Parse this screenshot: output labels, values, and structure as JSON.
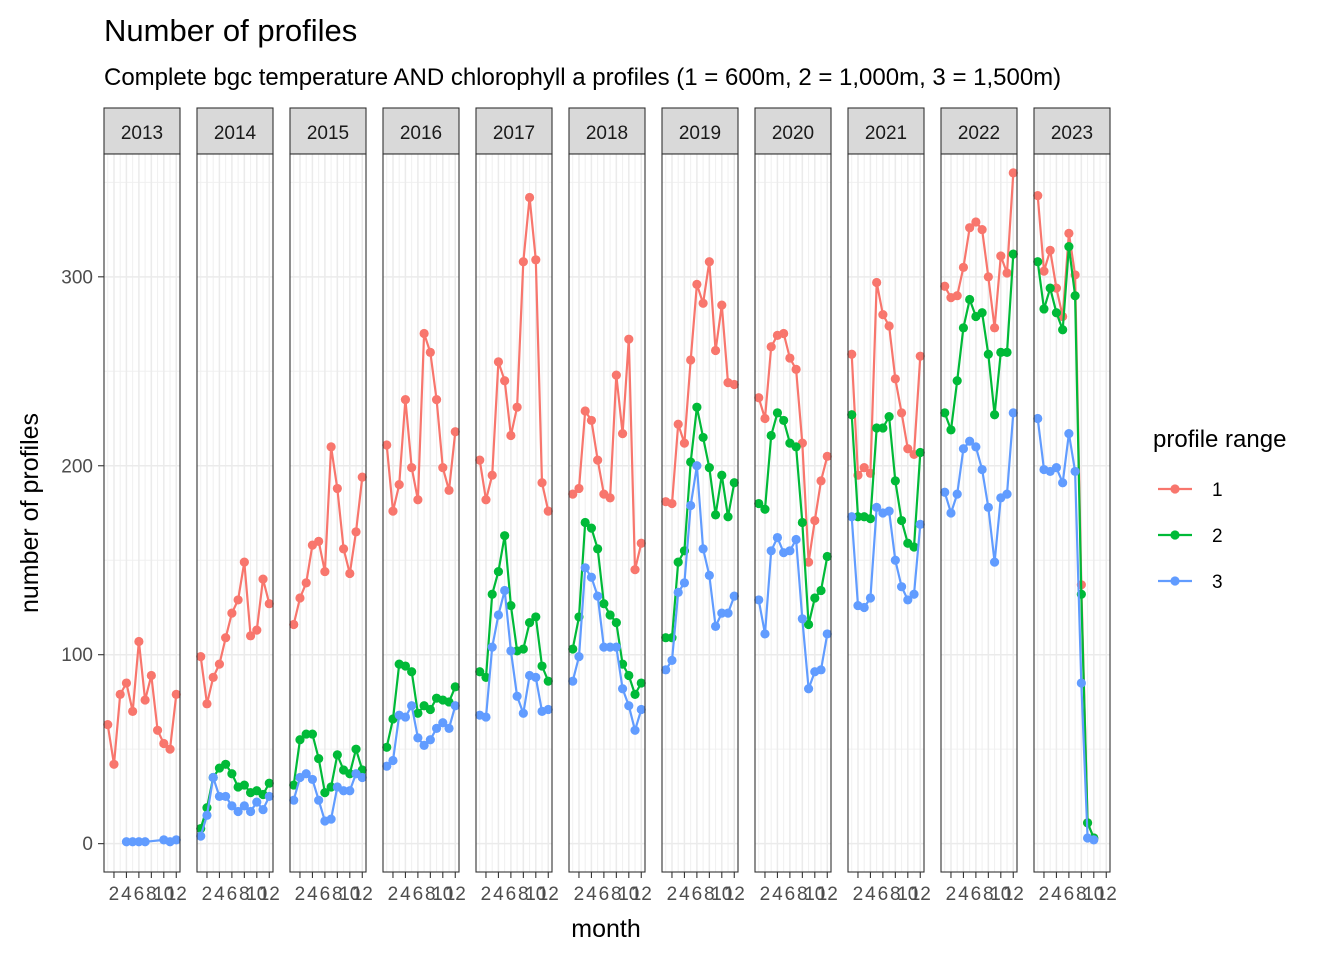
{
  "chart_data": {
    "type": "line",
    "title": "Number of profiles",
    "subtitle": "Complete bgc temperature AND chlorophyll a profiles (1 = 600m, 2 = 1,000m, 3 = 1,500m)",
    "xlabel": "month",
    "ylabel": "number of profiles",
    "ylim": [
      -15,
      365
    ],
    "yticks": [
      0,
      100,
      200,
      300
    ],
    "xlim": [
      0.4,
      12.6
    ],
    "xticks": [
      2,
      4,
      6,
      8,
      10,
      12
    ],
    "grid": true,
    "legend": {
      "title": "profile range",
      "placement": "right",
      "entries": [
        "1",
        "2",
        "3"
      ]
    },
    "colors": {
      "1": "#F8766D",
      "2": "#00BA38",
      "3": "#619CFF"
    },
    "panels": [
      {
        "year": "2013",
        "series": [
          {
            "name": "1",
            "x": [
              1,
              2,
              3,
              4,
              5,
              6,
              7,
              8,
              9,
              10,
              11,
              12
            ],
            "y": [
              63,
              42,
              79,
              85,
              70,
              107,
              76,
              89,
              60,
              53,
              50,
              79
            ]
          },
          {
            "name": "3",
            "x": [
              4,
              5,
              6,
              7,
              10,
              11,
              12
            ],
            "y": [
              1,
              1,
              1,
              1,
              2,
              1,
              2
            ]
          }
        ]
      },
      {
        "year": "2014",
        "series": [
          {
            "name": "1",
            "x": [
              1,
              2,
              3,
              4,
              5,
              6,
              7,
              8,
              9,
              10,
              11,
              12
            ],
            "y": [
              99,
              74,
              88,
              95,
              109,
              122,
              129,
              149,
              110,
              113,
              140,
              127
            ]
          },
          {
            "name": "2",
            "x": [
              1,
              2,
              3,
              4,
              5,
              6,
              7,
              8,
              9,
              10,
              11,
              12
            ],
            "y": [
              8,
              19,
              35,
              40,
              42,
              37,
              30,
              31,
              27,
              28,
              26,
              32
            ]
          },
          {
            "name": "3",
            "x": [
              1,
              2,
              3,
              4,
              5,
              6,
              7,
              8,
              9,
              10,
              11,
              12
            ],
            "y": [
              4,
              15,
              35,
              25,
              25,
              20,
              17,
              20,
              17,
              22,
              18,
              25
            ]
          }
        ]
      },
      {
        "year": "2015",
        "series": [
          {
            "name": "1",
            "x": [
              1,
              2,
              3,
              4,
              5,
              6,
              7,
              8,
              9,
              10,
              11,
              12
            ],
            "y": [
              116,
              130,
              138,
              158,
              160,
              144,
              210,
              188,
              156,
              143,
              165,
              194
            ]
          },
          {
            "name": "2",
            "x": [
              1,
              2,
              3,
              4,
              5,
              6,
              7,
              8,
              9,
              10,
              11,
              12
            ],
            "y": [
              31,
              55,
              58,
              58,
              45,
              27,
              30,
              47,
              39,
              37,
              50,
              39
            ]
          },
          {
            "name": "3",
            "x": [
              1,
              2,
              3,
              4,
              5,
              6,
              7,
              8,
              9,
              10,
              11,
              12
            ],
            "y": [
              23,
              35,
              37,
              34,
              23,
              12,
              13,
              30,
              28,
              28,
              37,
              35
            ]
          }
        ]
      },
      {
        "year": "2016",
        "series": [
          {
            "name": "1",
            "x": [
              1,
              2,
              3,
              4,
              5,
              6,
              7,
              8,
              9,
              10,
              11,
              12
            ],
            "y": [
              211,
              176,
              190,
              235,
              199,
              182,
              270,
              260,
              235,
              199,
              187,
              218
            ]
          },
          {
            "name": "2",
            "x": [
              1,
              2,
              3,
              4,
              5,
              6,
              7,
              8,
              9,
              10,
              11,
              12
            ],
            "y": [
              51,
              66,
              95,
              94,
              91,
              69,
              73,
              71,
              77,
              76,
              75,
              83
            ]
          },
          {
            "name": "3",
            "x": [
              1,
              2,
              3,
              4,
              5,
              6,
              7,
              8,
              9,
              10,
              11,
              12
            ],
            "y": [
              41,
              44,
              68,
              67,
              73,
              56,
              52,
              55,
              61,
              64,
              61,
              73
            ]
          }
        ]
      },
      {
        "year": "2017",
        "series": [
          {
            "name": "1",
            "x": [
              1,
              2,
              3,
              4,
              5,
              6,
              7,
              8,
              9,
              10,
              11,
              12
            ],
            "y": [
              203,
              182,
              195,
              255,
              245,
              216,
              231,
              308,
              342,
              309,
              191,
              176
            ]
          },
          {
            "name": "2",
            "x": [
              1,
              2,
              3,
              4,
              5,
              6,
              7,
              8,
              9,
              10,
              11,
              12
            ],
            "y": [
              91,
              88,
              132,
              144,
              163,
              126,
              102,
              103,
              117,
              120,
              94,
              86
            ]
          },
          {
            "name": "3",
            "x": [
              1,
              2,
              3,
              4,
              5,
              6,
              7,
              8,
              9,
              10,
              11,
              12
            ],
            "y": [
              68,
              67,
              104,
              121,
              134,
              102,
              78,
              69,
              89,
              88,
              70,
              71
            ]
          }
        ]
      },
      {
        "year": "2018",
        "series": [
          {
            "name": "1",
            "x": [
              1,
              2,
              3,
              4,
              5,
              6,
              7,
              8,
              9,
              10,
              11,
              12
            ],
            "y": [
              185,
              188,
              229,
              224,
              203,
              185,
              183,
              248,
              217,
              267,
              145,
              159
            ]
          },
          {
            "name": "2",
            "x": [
              1,
              2,
              3,
              4,
              5,
              6,
              7,
              8,
              9,
              10,
              11,
              12
            ],
            "y": [
              103,
              120,
              170,
              167,
              156,
              127,
              121,
              117,
              95,
              89,
              79,
              85
            ]
          },
          {
            "name": "3",
            "x": [
              1,
              2,
              3,
              4,
              5,
              6,
              7,
              8,
              9,
              10,
              11,
              12
            ],
            "y": [
              86,
              99,
              146,
              141,
              131,
              104,
              104,
              104,
              82,
              73,
              60,
              71
            ]
          }
        ]
      },
      {
        "year": "2019",
        "series": [
          {
            "name": "1",
            "x": [
              1,
              2,
              3,
              4,
              5,
              6,
              7,
              8,
              9,
              10,
              11,
              12
            ],
            "y": [
              181,
              180,
              222,
              212,
              256,
              296,
              286,
              308,
              261,
              285,
              244,
              243
            ]
          },
          {
            "name": "2",
            "x": [
              1,
              2,
              3,
              4,
              5,
              6,
              7,
              8,
              9,
              10,
              11,
              12
            ],
            "y": [
              109,
              109,
              149,
              155,
              202,
              231,
              215,
              199,
              174,
              195,
              173,
              191
            ]
          },
          {
            "name": "3",
            "x": [
              1,
              2,
              3,
              4,
              5,
              6,
              7,
              8,
              9,
              10,
              11,
              12
            ],
            "y": [
              92,
              97,
              133,
              138,
              179,
              200,
              156,
              142,
              115,
              122,
              122,
              131
            ]
          }
        ]
      },
      {
        "year": "2020",
        "series": [
          {
            "name": "1",
            "x": [
              1,
              2,
              3,
              4,
              5,
              6,
              7,
              8,
              9,
              10,
              11,
              12
            ],
            "y": [
              236,
              225,
              263,
              269,
              270,
              257,
              251,
              212,
              149,
              171,
              192,
              205
            ]
          },
          {
            "name": "2",
            "x": [
              1,
              2,
              3,
              4,
              5,
              6,
              7,
              8,
              9,
              10,
              11,
              12
            ],
            "y": [
              180,
              177,
              216,
              228,
              224,
              212,
              210,
              170,
              116,
              130,
              134,
              152
            ]
          },
          {
            "name": "3",
            "x": [
              1,
              2,
              3,
              4,
              5,
              6,
              7,
              8,
              9,
              10,
              11,
              12
            ],
            "y": [
              129,
              111,
              155,
              162,
              154,
              155,
              161,
              119,
              82,
              91,
              92,
              111
            ]
          }
        ]
      },
      {
        "year": "2021",
        "series": [
          {
            "name": "1",
            "x": [
              1,
              2,
              3,
              4,
              5,
              6,
              7,
              8,
              9,
              10,
              11,
              12
            ],
            "y": [
              259,
              195,
              199,
              196,
              297,
              280,
              274,
              246,
              228,
              209,
              206,
              258
            ]
          },
          {
            "name": "2",
            "x": [
              1,
              2,
              3,
              4,
              5,
              6,
              7,
              8,
              9,
              10,
              11,
              12
            ],
            "y": [
              227,
              173,
              173,
              172,
              220,
              220,
              226,
              192,
              171,
              159,
              157,
              207
            ]
          },
          {
            "name": "3",
            "x": [
              1,
              2,
              3,
              4,
              5,
              6,
              7,
              8,
              9,
              10,
              11,
              12
            ],
            "y": [
              173,
              126,
              125,
              130,
              178,
              175,
              176,
              150,
              136,
              129,
              132,
              169
            ]
          }
        ]
      },
      {
        "year": "2022",
        "series": [
          {
            "name": "1",
            "x": [
              1,
              2,
              3,
              4,
              5,
              6,
              7,
              8,
              9,
              10,
              11,
              12
            ],
            "y": [
              295,
              289,
              290,
              305,
              326,
              329,
              325,
              300,
              273,
              311,
              302,
              355
            ]
          },
          {
            "name": "2",
            "x": [
              1,
              2,
              3,
              4,
              5,
              6,
              7,
              8,
              9,
              10,
              11,
              12
            ],
            "y": [
              228,
              219,
              245,
              273,
              288,
              279,
              281,
              259,
              227,
              260,
              260,
              312
            ]
          },
          {
            "name": "3",
            "x": [
              1,
              2,
              3,
              4,
              5,
              6,
              7,
              8,
              9,
              10,
              11,
              12
            ],
            "y": [
              186,
              175,
              185,
              209,
              213,
              210,
              198,
              178,
              149,
              183,
              185,
              228
            ]
          }
        ]
      },
      {
        "year": "2023",
        "series": [
          {
            "name": "1",
            "x": [
              1,
              2,
              3,
              4,
              5,
              6,
              7,
              8,
              9,
              10
            ],
            "y": [
              343,
              303,
              314,
              294,
              279,
              323,
              301,
              137,
              11,
              3
            ]
          },
          {
            "name": "2",
            "x": [
              1,
              2,
              3,
              4,
              5,
              6,
              7,
              8,
              9,
              10
            ],
            "y": [
              308,
              283,
              294,
              281,
              272,
              316,
              290,
              132,
              11,
              3
            ]
          },
          {
            "name": "3",
            "x": [
              1,
              2,
              3,
              4,
              5,
              6,
              7,
              8,
              9,
              10
            ],
            "y": [
              225,
              198,
              197,
              199,
              191,
              217,
              197,
              85,
              3,
              2
            ]
          }
        ]
      }
    ]
  }
}
